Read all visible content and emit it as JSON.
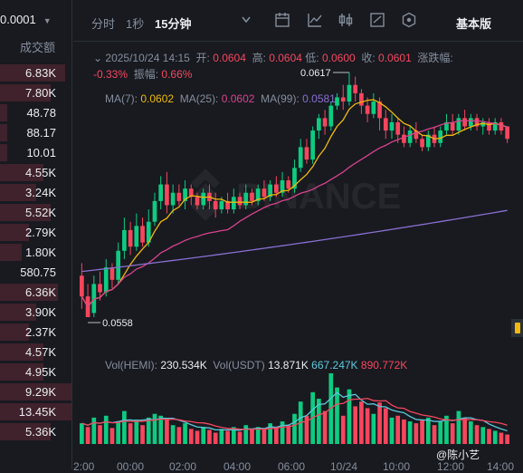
{
  "left_panel": {
    "price_step": "0.0001",
    "header": "成交额",
    "rows": [
      {
        "v": "6.83K",
        "t": "red",
        "w": 0.9
      },
      {
        "v": "7.80K",
        "t": "red",
        "w": 0.7
      },
      {
        "v": "48.78",
        "t": "red",
        "w": 0.1
      },
      {
        "v": "88.17",
        "t": "red",
        "w": 0.1
      },
      {
        "v": "10.01",
        "t": "red",
        "w": 0.1
      },
      {
        "v": "4.55K",
        "t": "red",
        "w": 0.6
      },
      {
        "v": "3.24K",
        "t": "red",
        "w": 0.5
      },
      {
        "v": "5.52K",
        "t": "red",
        "w": 0.7
      },
      {
        "v": "2.79K",
        "t": "red",
        "w": 0.4
      },
      {
        "v": "1.80K",
        "t": "red",
        "w": 0.3
      },
      {
        "v": "580.75",
        "t": "none",
        "w": 0
      },
      {
        "v": "6.36K",
        "t": "red",
        "w": 0.8
      },
      {
        "v": "3.90K",
        "t": "red",
        "w": 0.5
      },
      {
        "v": "2.37K",
        "t": "red",
        "w": 0.4
      },
      {
        "v": "4.57K",
        "t": "red",
        "w": 0.6
      },
      {
        "v": "4.95K",
        "t": "red",
        "w": 0.6
      },
      {
        "v": "9.29K",
        "t": "red",
        "w": 1.0
      },
      {
        "v": "13.45K",
        "t": "red",
        "w": 1.0
      },
      {
        "v": "5.36K",
        "t": "red",
        "w": 0.7
      }
    ]
  },
  "toolbar": {
    "time_label": "分时",
    "sec_label": "1秒",
    "interval_label": "15分钟",
    "mode_label": "基本版",
    "icons": [
      "chevron-down-icon",
      "indicator-settings-icon",
      "line-chart-icon",
      "candle-icon",
      "draw-tools-icon",
      "hexagon-icon"
    ]
  },
  "ohlc": {
    "datetime": "2025/10/24 14:15",
    "open_label": "开:",
    "open": "0.0604",
    "high_label": "高:",
    "high": "0.0604",
    "low_label": "低:",
    "low": "0.0600",
    "close_label": "收:",
    "close": "0.0601",
    "change_label": "涨跌幅:",
    "change": "-0.33%",
    "amp_label": "振幅:",
    "amp": "0.66%"
  },
  "ma": {
    "ma7_label": "MA(7):",
    "ma7": "0.0602",
    "ma7_color": "#f0b90b",
    "ma25_label": "MA(25):",
    "ma25": "0.0602",
    "ma25_color": "#d9438d",
    "ma99_label": "MA(99):",
    "ma99": "0.0581",
    "ma99_color": "#8a6fd1"
  },
  "chart_marks": {
    "high": "0.0617",
    "low": "0.0558"
  },
  "volume": {
    "hemi_label": "Vol(HEMI):",
    "hemi": "230.534K",
    "usdt_label": "Vol(USDT)",
    "usdt": "13.871K",
    "ma1": "667.247K",
    "ma1_color": "#5bc8dc",
    "ma2": "890.772K",
    "ma2_color": "#f6465d"
  },
  "x_axis": [
    "2:00",
    "00:00",
    "02:00",
    "04:00",
    "06:00",
    "10/24",
    "10:00",
    "12:00",
    "14:00"
  ],
  "watermark": "@陈小艺",
  "colors": {
    "up": "#0ecb81",
    "down": "#f6465d",
    "bg": "#181a20"
  },
  "chart_data": {
    "type": "candlestick",
    "y_high": 0.0617,
    "y_low": 0.0558,
    "candles": [
      [
        0.0568,
        0.0563,
        0.0571,
        0.056
      ],
      [
        0.0563,
        0.0558,
        0.0566,
        0.0558
      ],
      [
        0.0559,
        0.0566,
        0.0568,
        0.0558
      ],
      [
        0.0566,
        0.0564,
        0.0569,
        0.0562
      ],
      [
        0.0564,
        0.057,
        0.0572,
        0.0563
      ],
      [
        0.057,
        0.0567,
        0.0571,
        0.0565
      ],
      [
        0.0567,
        0.0574,
        0.0576,
        0.0566
      ],
      [
        0.0574,
        0.0579,
        0.0582,
        0.0572
      ],
      [
        0.0579,
        0.0575,
        0.0581,
        0.0573
      ],
      [
        0.0575,
        0.058,
        0.0583,
        0.0574
      ],
      [
        0.058,
        0.0576,
        0.0582,
        0.0575
      ],
      [
        0.0576,
        0.0581,
        0.0584,
        0.0575
      ],
      [
        0.0581,
        0.0586,
        0.0588,
        0.058
      ],
      [
        0.0586,
        0.059,
        0.0592,
        0.0584
      ],
      [
        0.059,
        0.0585,
        0.0593,
        0.0583
      ],
      [
        0.0585,
        0.0588,
        0.059,
        0.0583
      ],
      [
        0.0588,
        0.0586,
        0.059,
        0.0585
      ],
      [
        0.0586,
        0.0589,
        0.0591,
        0.0584
      ],
      [
        0.0589,
        0.0587,
        0.059,
        0.0585
      ],
      [
        0.0587,
        0.0585,
        0.0588,
        0.0584
      ],
      [
        0.0585,
        0.0588,
        0.0589,
        0.0584
      ],
      [
        0.0588,
        0.0586,
        0.059,
        0.0584
      ],
      [
        0.0586,
        0.0584,
        0.0588,
        0.0582
      ],
      [
        0.0584,
        0.0586,
        0.0587,
        0.0583
      ],
      [
        0.0586,
        0.0584,
        0.0588,
        0.0583
      ],
      [
        0.0584,
        0.0587,
        0.0589,
        0.0583
      ],
      [
        0.0587,
        0.0585,
        0.0588,
        0.0584
      ],
      [
        0.0585,
        0.0588,
        0.059,
        0.0584
      ],
      [
        0.0588,
        0.0586,
        0.0589,
        0.0585
      ],
      [
        0.0586,
        0.0589,
        0.059,
        0.0585
      ],
      [
        0.0589,
        0.0587,
        0.0591,
        0.0586
      ],
      [
        0.0587,
        0.059,
        0.0591,
        0.0586
      ],
      [
        0.059,
        0.0588,
        0.0592,
        0.0587
      ],
      [
        0.0588,
        0.0591,
        0.0593,
        0.0587
      ],
      [
        0.0591,
        0.0589,
        0.0592,
        0.0588
      ],
      [
        0.0589,
        0.0594,
        0.0596,
        0.0588
      ],
      [
        0.0594,
        0.0599,
        0.0601,
        0.0593
      ],
      [
        0.0599,
        0.0596,
        0.0601,
        0.0595
      ],
      [
        0.0596,
        0.0603,
        0.0604,
        0.0595
      ],
      [
        0.0603,
        0.0606,
        0.0607,
        0.0601
      ],
      [
        0.0606,
        0.0604,
        0.0608,
        0.0602
      ],
      [
        0.0604,
        0.0609,
        0.061,
        0.0603
      ],
      [
        0.0609,
        0.0611,
        0.0612,
        0.0608
      ],
      [
        0.0611,
        0.061,
        0.0614,
        0.0608
      ],
      [
        0.061,
        0.0614,
        0.0617,
        0.0609
      ],
      [
        0.0614,
        0.0612,
        0.0616,
        0.061
      ],
      [
        0.0612,
        0.0609,
        0.0613,
        0.0607
      ],
      [
        0.0609,
        0.0607,
        0.0611,
        0.0605
      ],
      [
        0.0607,
        0.061,
        0.0612,
        0.0606
      ],
      [
        0.061,
        0.0606,
        0.0611,
        0.0603
      ],
      [
        0.0606,
        0.0603,
        0.0608,
        0.0601
      ],
      [
        0.0603,
        0.0605,
        0.0607,
        0.0601
      ],
      [
        0.0605,
        0.0602,
        0.0606,
        0.06
      ],
      [
        0.0602,
        0.06,
        0.0604,
        0.0599
      ],
      [
        0.06,
        0.0603,
        0.0604,
        0.0599
      ],
      [
        0.0603,
        0.0601,
        0.0605,
        0.06
      ],
      [
        0.0601,
        0.0599,
        0.0602,
        0.0598
      ],
      [
        0.0599,
        0.0602,
        0.0603,
        0.0598
      ],
      [
        0.0602,
        0.06,
        0.0604,
        0.0599
      ],
      [
        0.06,
        0.0603,
        0.0604,
        0.0599
      ],
      [
        0.0603,
        0.0605,
        0.0607,
        0.0602
      ],
      [
        0.0605,
        0.0603,
        0.0607,
        0.0602
      ],
      [
        0.0603,
        0.0606,
        0.0607,
        0.0602
      ],
      [
        0.0606,
        0.0604,
        0.0608,
        0.0603
      ],
      [
        0.0604,
        0.0606,
        0.0607,
        0.0603
      ],
      [
        0.0606,
        0.0604,
        0.0607,
        0.0603
      ],
      [
        0.0604,
        0.0605,
        0.0606,
        0.0602
      ],
      [
        0.0605,
        0.0603,
        0.0606,
        0.0602
      ],
      [
        0.0603,
        0.0605,
        0.0606,
        0.0602
      ],
      [
        0.0605,
        0.0603,
        0.0606,
        0.0602
      ],
      [
        0.0604,
        0.0601,
        0.0604,
        0.06
      ]
    ],
    "volumes": [
      [
        22,
        1
      ],
      [
        18,
        0
      ],
      [
        28,
        1
      ],
      [
        20,
        0
      ],
      [
        30,
        1
      ],
      [
        17,
        0
      ],
      [
        24,
        1
      ],
      [
        35,
        1
      ],
      [
        22,
        0
      ],
      [
        26,
        1
      ],
      [
        20,
        0
      ],
      [
        28,
        1
      ],
      [
        32,
        1
      ],
      [
        30,
        1
      ],
      [
        26,
        0
      ],
      [
        20,
        1
      ],
      [
        18,
        0
      ],
      [
        22,
        1
      ],
      [
        16,
        0
      ],
      [
        14,
        0
      ],
      [
        18,
        1
      ],
      [
        15,
        0
      ],
      [
        12,
        0
      ],
      [
        16,
        1
      ],
      [
        14,
        0
      ],
      [
        18,
        1
      ],
      [
        13,
        0
      ],
      [
        20,
        1
      ],
      [
        15,
        0
      ],
      [
        18,
        1
      ],
      [
        16,
        0
      ],
      [
        22,
        1
      ],
      [
        18,
        0
      ],
      [
        24,
        1
      ],
      [
        20,
        0
      ],
      [
        32,
        1
      ],
      [
        45,
        1
      ],
      [
        30,
        0
      ],
      [
        55,
        1
      ],
      [
        48,
        1
      ],
      [
        35,
        0
      ],
      [
        75,
        1
      ],
      [
        60,
        1
      ],
      [
        30,
        0
      ],
      [
        58,
        1
      ],
      [
        40,
        0
      ],
      [
        45,
        0
      ],
      [
        38,
        0
      ],
      [
        32,
        1
      ],
      [
        44,
        0
      ],
      [
        38,
        0
      ],
      [
        28,
        1
      ],
      [
        30,
        0
      ],
      [
        26,
        0
      ],
      [
        24,
        1
      ],
      [
        22,
        0
      ],
      [
        26,
        0
      ],
      [
        28,
        1
      ],
      [
        20,
        0
      ],
      [
        24,
        1
      ],
      [
        30,
        1
      ],
      [
        22,
        0
      ],
      [
        35,
        1
      ],
      [
        28,
        0
      ],
      [
        24,
        1
      ],
      [
        20,
        0
      ],
      [
        18,
        1
      ],
      [
        16,
        0
      ],
      [
        14,
        1
      ],
      [
        12,
        0
      ],
      [
        10,
        0
      ]
    ]
  }
}
